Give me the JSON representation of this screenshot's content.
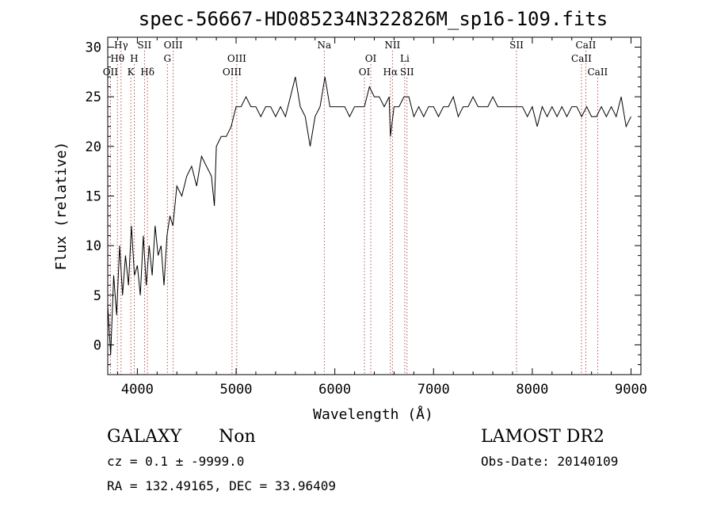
{
  "chart_data": {
    "type": "line",
    "title": "spec-56667-HD085234N322826M_sp16-109.fits",
    "xlabel": "Wavelength (Å)",
    "ylabel": "Flux (relative)",
    "xlim": [
      3700,
      9100
    ],
    "ylim": [
      -3,
      31
    ],
    "x_ticks": [
      4000,
      5000,
      6000,
      7000,
      8000,
      9000
    ],
    "y_ticks": [
      0,
      5,
      10,
      15,
      20,
      25,
      30
    ],
    "series": [
      {
        "x": [
          3700,
          3730,
          3760,
          3790,
          3820,
          3850,
          3880,
          3910,
          3940,
          3970,
          4000,
          4030,
          4060,
          4090,
          4120,
          4150,
          4180,
          4210,
          4240,
          4270,
          4300,
          4330,
          4360,
          4400,
          4450,
          4500,
          4550,
          4600,
          4650,
          4700,
          4750,
          4780,
          4800,
          4850,
          4900,
          4950,
          5000,
          5050,
          5100,
          5150,
          5200,
          5250,
          5300,
          5350,
          5400,
          5450,
          5500,
          5550,
          5600,
          5650,
          5700,
          5750,
          5800,
          5850,
          5900,
          5950,
          6000,
          6050,
          6100,
          6150,
          6200,
          6250,
          6300,
          6350,
          6400,
          6450,
          6500,
          6550,
          6563,
          6600,
          6650,
          6700,
          6750,
          6800,
          6850,
          6900,
          6950,
          7000,
          7050,
          7100,
          7150,
          7200,
          7250,
          7300,
          7350,
          7400,
          7450,
          7500,
          7550,
          7600,
          7650,
          7700,
          7750,
          7800,
          7850,
          7900,
          7950,
          8000,
          8050,
          8100,
          8150,
          8200,
          8250,
          8300,
          8350,
          8400,
          8450,
          8500,
          8550,
          8600,
          8650,
          8700,
          8750,
          8800,
          8850,
          8900,
          8950,
          9000
        ],
        "y": [
          4,
          -1,
          7,
          3,
          10,
          5,
          9,
          6,
          12,
          7,
          8,
          5,
          11,
          6,
          10,
          7,
          12,
          9,
          10,
          6,
          11,
          13,
          12,
          16,
          15,
          17,
          18,
          16,
          19,
          18,
          17,
          14,
          20,
          21,
          21,
          22,
          24,
          24,
          25,
          24,
          24,
          23,
          24,
          24,
          23,
          24,
          23,
          25,
          27,
          24,
          23,
          20,
          23,
          24,
          27,
          24,
          24,
          24,
          24,
          23,
          24,
          24,
          24,
          26,
          25,
          25,
          24,
          25,
          21,
          24,
          24,
          25,
          25,
          23,
          24,
          23,
          24,
          24,
          23,
          24,
          24,
          25,
          23,
          24,
          24,
          25,
          24,
          24,
          24,
          25,
          24,
          24,
          24,
          24,
          24,
          24,
          23,
          24,
          22,
          24,
          23,
          24,
          23,
          24,
          23,
          24,
          24,
          23,
          24,
          23,
          23,
          24,
          23,
          24,
          23,
          25,
          22,
          23
        ]
      }
    ],
    "line_markers": [
      {
        "label": "Hγ",
        "x": 3835,
        "row": 0
      },
      {
        "label": "Hθ",
        "x": 3798,
        "row": 1
      },
      {
        "label": "OII",
        "x": 3727,
        "row": 2
      },
      {
        "label": "SII",
        "x": 4072,
        "row": 0
      },
      {
        "label": "H",
        "x": 3968,
        "row": 1
      },
      {
        "label": "K",
        "x": 3934,
        "row": 2
      },
      {
        "label": "Hδ",
        "x": 4102,
        "row": 2
      },
      {
        "label": "OIII",
        "x": 4363,
        "row": 0
      },
      {
        "label": "G",
        "x": 4304,
        "row": 1
      },
      {
        "label": "OIII",
        "x": 5007,
        "row": 1
      },
      {
        "label": "OIII",
        "x": 4959,
        "row": 2
      },
      {
        "label": "Na",
        "x": 5893,
        "row": 0
      },
      {
        "label": "OI",
        "x": 6364,
        "row": 1
      },
      {
        "label": "OI",
        "x": 6300,
        "row": 2
      },
      {
        "label": "NII",
        "x": 6583,
        "row": 0
      },
      {
        "label": "Hα",
        "x": 6563,
        "row": 2
      },
      {
        "label": "Li",
        "x": 6708,
        "row": 1
      },
      {
        "label": "SII",
        "x": 6731,
        "row": 2
      },
      {
        "label": "SII",
        "x": 7840,
        "row": 0
      },
      {
        "label": "CaII",
        "x": 8542,
        "row": 0
      },
      {
        "label": "CaII",
        "x": 8498,
        "row": 1
      },
      {
        "label": "CaII",
        "x": 8662,
        "row": 2
      }
    ]
  },
  "info": {
    "class": "GALAXY",
    "subclass": "Non",
    "survey": "LAMOST DR2",
    "cz": "cz = 0.1 ± -9999.0",
    "obs_date": "Obs-Date: 20140109",
    "radec": "RA = 132.49165, DEC =  33.96409"
  }
}
